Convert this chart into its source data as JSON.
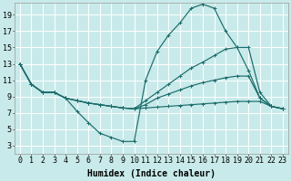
{
  "bg_color": "#c9eaea",
  "grid_color": "#b0d8d8",
  "line_color": "#1a6b6b",
  "xlabel": "Humidex (Indice chaleur)",
  "xlabel_fontsize": 7,
  "tick_fontsize": 6,
  "yticks": [
    3,
    5,
    7,
    9,
    11,
    13,
    15,
    17,
    19
  ],
  "xlim": [
    -0.5,
    23.5
  ],
  "ylim": [
    2.0,
    20.5
  ],
  "lines": [
    [
      13,
      10.5,
      9.5,
      9.5,
      8.8,
      8.5,
      8.2,
      8.0,
      7.8,
      7.6,
      7.5,
      7.6,
      7.7,
      7.8,
      7.9,
      8.0,
      8.1,
      8.2,
      8.3,
      8.4,
      8.4,
      8.4,
      7.8,
      7.5
    ],
    [
      13,
      10.5,
      9.5,
      9.5,
      8.8,
      8.5,
      8.2,
      8.0,
      7.8,
      7.6,
      7.5,
      8.0,
      8.8,
      9.3,
      9.8,
      10.3,
      10.7,
      11.0,
      11.3,
      11.5,
      11.5,
      8.8,
      7.8,
      7.5
    ],
    [
      13,
      10.5,
      9.5,
      9.5,
      8.8,
      8.5,
      8.2,
      8.0,
      7.8,
      7.6,
      7.5,
      8.5,
      9.5,
      10.5,
      11.5,
      12.5,
      13.2,
      14.0,
      14.8,
      15.0,
      12.2,
      8.8,
      7.8,
      7.5
    ],
    [
      13,
      10.5,
      9.5,
      9.5,
      8.8,
      7.2,
      5.8,
      4.5,
      4.0,
      3.5,
      3.5,
      11.0,
      14.5,
      16.5,
      18.0,
      19.8,
      20.3,
      19.8,
      17.0,
      15.0,
      15.0,
      9.5,
      7.8,
      7.5
    ]
  ]
}
